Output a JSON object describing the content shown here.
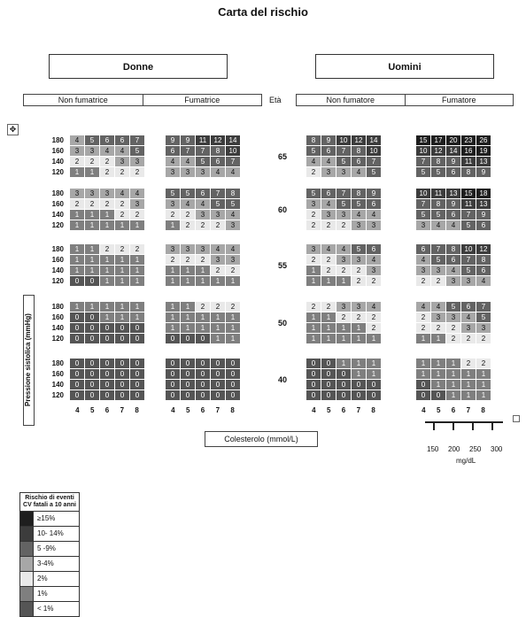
{
  "title": "Carta del rischio",
  "groups": {
    "women": "Donne",
    "men": "Uomini"
  },
  "sub": {
    "women_non_smoker": "Non fumatrice",
    "women_smoker": "Fumatrice",
    "age_label": "Età",
    "men_non_smoker": "Non fumatore",
    "men_smoker": "Fumatore"
  },
  "y_label": "Pressione sistolica (mmHg)",
  "sbp_levels": [
    "180",
    "160",
    "140",
    "120"
  ],
  "ages": [
    "65",
    "60",
    "55",
    "50",
    "40"
  ],
  "chol_ticks": [
    "4",
    "5",
    "6",
    "7",
    "8"
  ],
  "x_label": "Colesterolo (mmol/L)",
  "mg_ticks": [
    "150",
    "200",
    "250",
    "300"
  ],
  "mg_unit": "mg/dL",
  "legend": {
    "title": "Rischio di eventi CV fatali a 10 anni",
    "items": [
      {
        "label": "≥15%",
        "color": "#1e1e1e"
      },
      {
        "label": "10- 14%",
        "color": "#3c3c3c"
      },
      {
        "label": "5 -9%",
        "color": "#636363"
      },
      {
        "label": "3-4%",
        "color": "#a7a7a7"
      },
      {
        "label": "2%",
        "color": "#e9e9e9"
      },
      {
        "label": "1%",
        "color": "#7f7f7f"
      },
      {
        "label": "< 1%",
        "color": "#555555"
      }
    ]
  },
  "risk": {
    "women_non_smoker": [
      [
        [
          4,
          5,
          6,
          6,
          7
        ],
        [
          3,
          3,
          4,
          4,
          5
        ],
        [
          2,
          2,
          2,
          3,
          3
        ],
        [
          1,
          1,
          2,
          2,
          2
        ]
      ],
      [
        [
          3,
          3,
          3,
          4,
          4
        ],
        [
          2,
          2,
          2,
          2,
          3
        ],
        [
          1,
          1,
          1,
          2,
          2
        ],
        [
          1,
          1,
          1,
          1,
          1
        ]
      ],
      [
        [
          1,
          1,
          2,
          2,
          2
        ],
        [
          1,
          1,
          1,
          1,
          1
        ],
        [
          1,
          1,
          1,
          1,
          1
        ],
        [
          0,
          0,
          1,
          1,
          1
        ]
      ],
      [
        [
          1,
          1,
          1,
          1,
          1
        ],
        [
          0,
          0,
          1,
          1,
          1
        ],
        [
          0,
          0,
          0,
          0,
          0
        ],
        [
          0,
          0,
          0,
          0,
          0
        ]
      ],
      [
        [
          0,
          0,
          0,
          0,
          0
        ],
        [
          0,
          0,
          0,
          0,
          0
        ],
        [
          0,
          0,
          0,
          0,
          0
        ],
        [
          0,
          0,
          0,
          0,
          0
        ]
      ]
    ],
    "women_smoker": [
      [
        [
          9,
          9,
          11,
          12,
          14
        ],
        [
          6,
          7,
          7,
          8,
          10
        ],
        [
          4,
          4,
          5,
          6,
          7
        ],
        [
          3,
          3,
          3,
          4,
          4
        ]
      ],
      [
        [
          5,
          5,
          6,
          7,
          8
        ],
        [
          3,
          4,
          4,
          5,
          5
        ],
        [
          2,
          2,
          3,
          3,
          4
        ],
        [
          1,
          2,
          2,
          2,
          3
        ]
      ],
      [
        [
          3,
          3,
          3,
          4,
          4
        ],
        [
          2,
          2,
          2,
          3,
          3
        ],
        [
          1,
          1,
          1,
          2,
          2
        ],
        [
          1,
          1,
          1,
          1,
          1
        ]
      ],
      [
        [
          1,
          1,
          2,
          2,
          2
        ],
        [
          1,
          1,
          1,
          1,
          1
        ],
        [
          1,
          1,
          1,
          1,
          1
        ],
        [
          0,
          0,
          0,
          1,
          1
        ]
      ],
      [
        [
          0,
          0,
          0,
          0,
          0
        ],
        [
          0,
          0,
          0,
          0,
          0
        ],
        [
          0,
          0,
          0,
          0,
          0
        ],
        [
          0,
          0,
          0,
          0,
          0
        ]
      ]
    ],
    "men_non_smoker": [
      [
        [
          8,
          9,
          10,
          12,
          14
        ],
        [
          5,
          6,
          7,
          8,
          10
        ],
        [
          4,
          4,
          5,
          6,
          7
        ],
        [
          2,
          3,
          3,
          4,
          5
        ]
      ],
      [
        [
          5,
          6,
          7,
          8,
          9
        ],
        [
          3,
          4,
          5,
          5,
          6
        ],
        [
          2,
          3,
          3,
          4,
          4
        ],
        [
          2,
          2,
          2,
          3,
          3
        ]
      ],
      [
        [
          3,
          4,
          4,
          5,
          6
        ],
        [
          2,
          2,
          3,
          3,
          4
        ],
        [
          1,
          2,
          2,
          2,
          3
        ],
        [
          1,
          1,
          1,
          2,
          2
        ]
      ],
      [
        [
          2,
          2,
          3,
          3,
          4
        ],
        [
          1,
          1,
          2,
          2,
          2
        ],
        [
          1,
          1,
          1,
          1,
          2
        ],
        [
          1,
          1,
          1,
          1,
          1
        ]
      ],
      [
        [
          0,
          0,
          1,
          1,
          1
        ],
        [
          0,
          0,
          0,
          1,
          1
        ],
        [
          0,
          0,
          0,
          0,
          0
        ],
        [
          0,
          0,
          0,
          0,
          0
        ]
      ]
    ],
    "men_smoker": [
      [
        [
          15,
          17,
          20,
          23,
          26
        ],
        [
          10,
          12,
          14,
          16,
          19
        ],
        [
          7,
          8,
          9,
          11,
          13
        ],
        [
          5,
          5,
          6,
          8,
          9
        ]
      ],
      [
        [
          10,
          11,
          13,
          15,
          18
        ],
        [
          7,
          8,
          9,
          11,
          13
        ],
        [
          5,
          5,
          6,
          7,
          9
        ],
        [
          3,
          4,
          4,
          5,
          6
        ]
      ],
      [
        [
          6,
          7,
          8,
          10,
          12
        ],
        [
          4,
          5,
          6,
          7,
          8
        ],
        [
          3,
          3,
          4,
          5,
          6
        ],
        [
          2,
          2,
          3,
          3,
          4
        ]
      ],
      [
        [
          4,
          4,
          5,
          6,
          7
        ],
        [
          2,
          3,
          3,
          4,
          5
        ],
        [
          2,
          2,
          2,
          3,
          3
        ],
        [
          1,
          1,
          2,
          2,
          2
        ]
      ],
      [
        [
          1,
          1,
          1,
          2,
          2
        ],
        [
          1,
          1,
          1,
          1,
          1
        ],
        [
          0,
          1,
          1,
          1,
          1
        ],
        [
          0,
          0,
          1,
          1,
          1
        ]
      ]
    ]
  }
}
